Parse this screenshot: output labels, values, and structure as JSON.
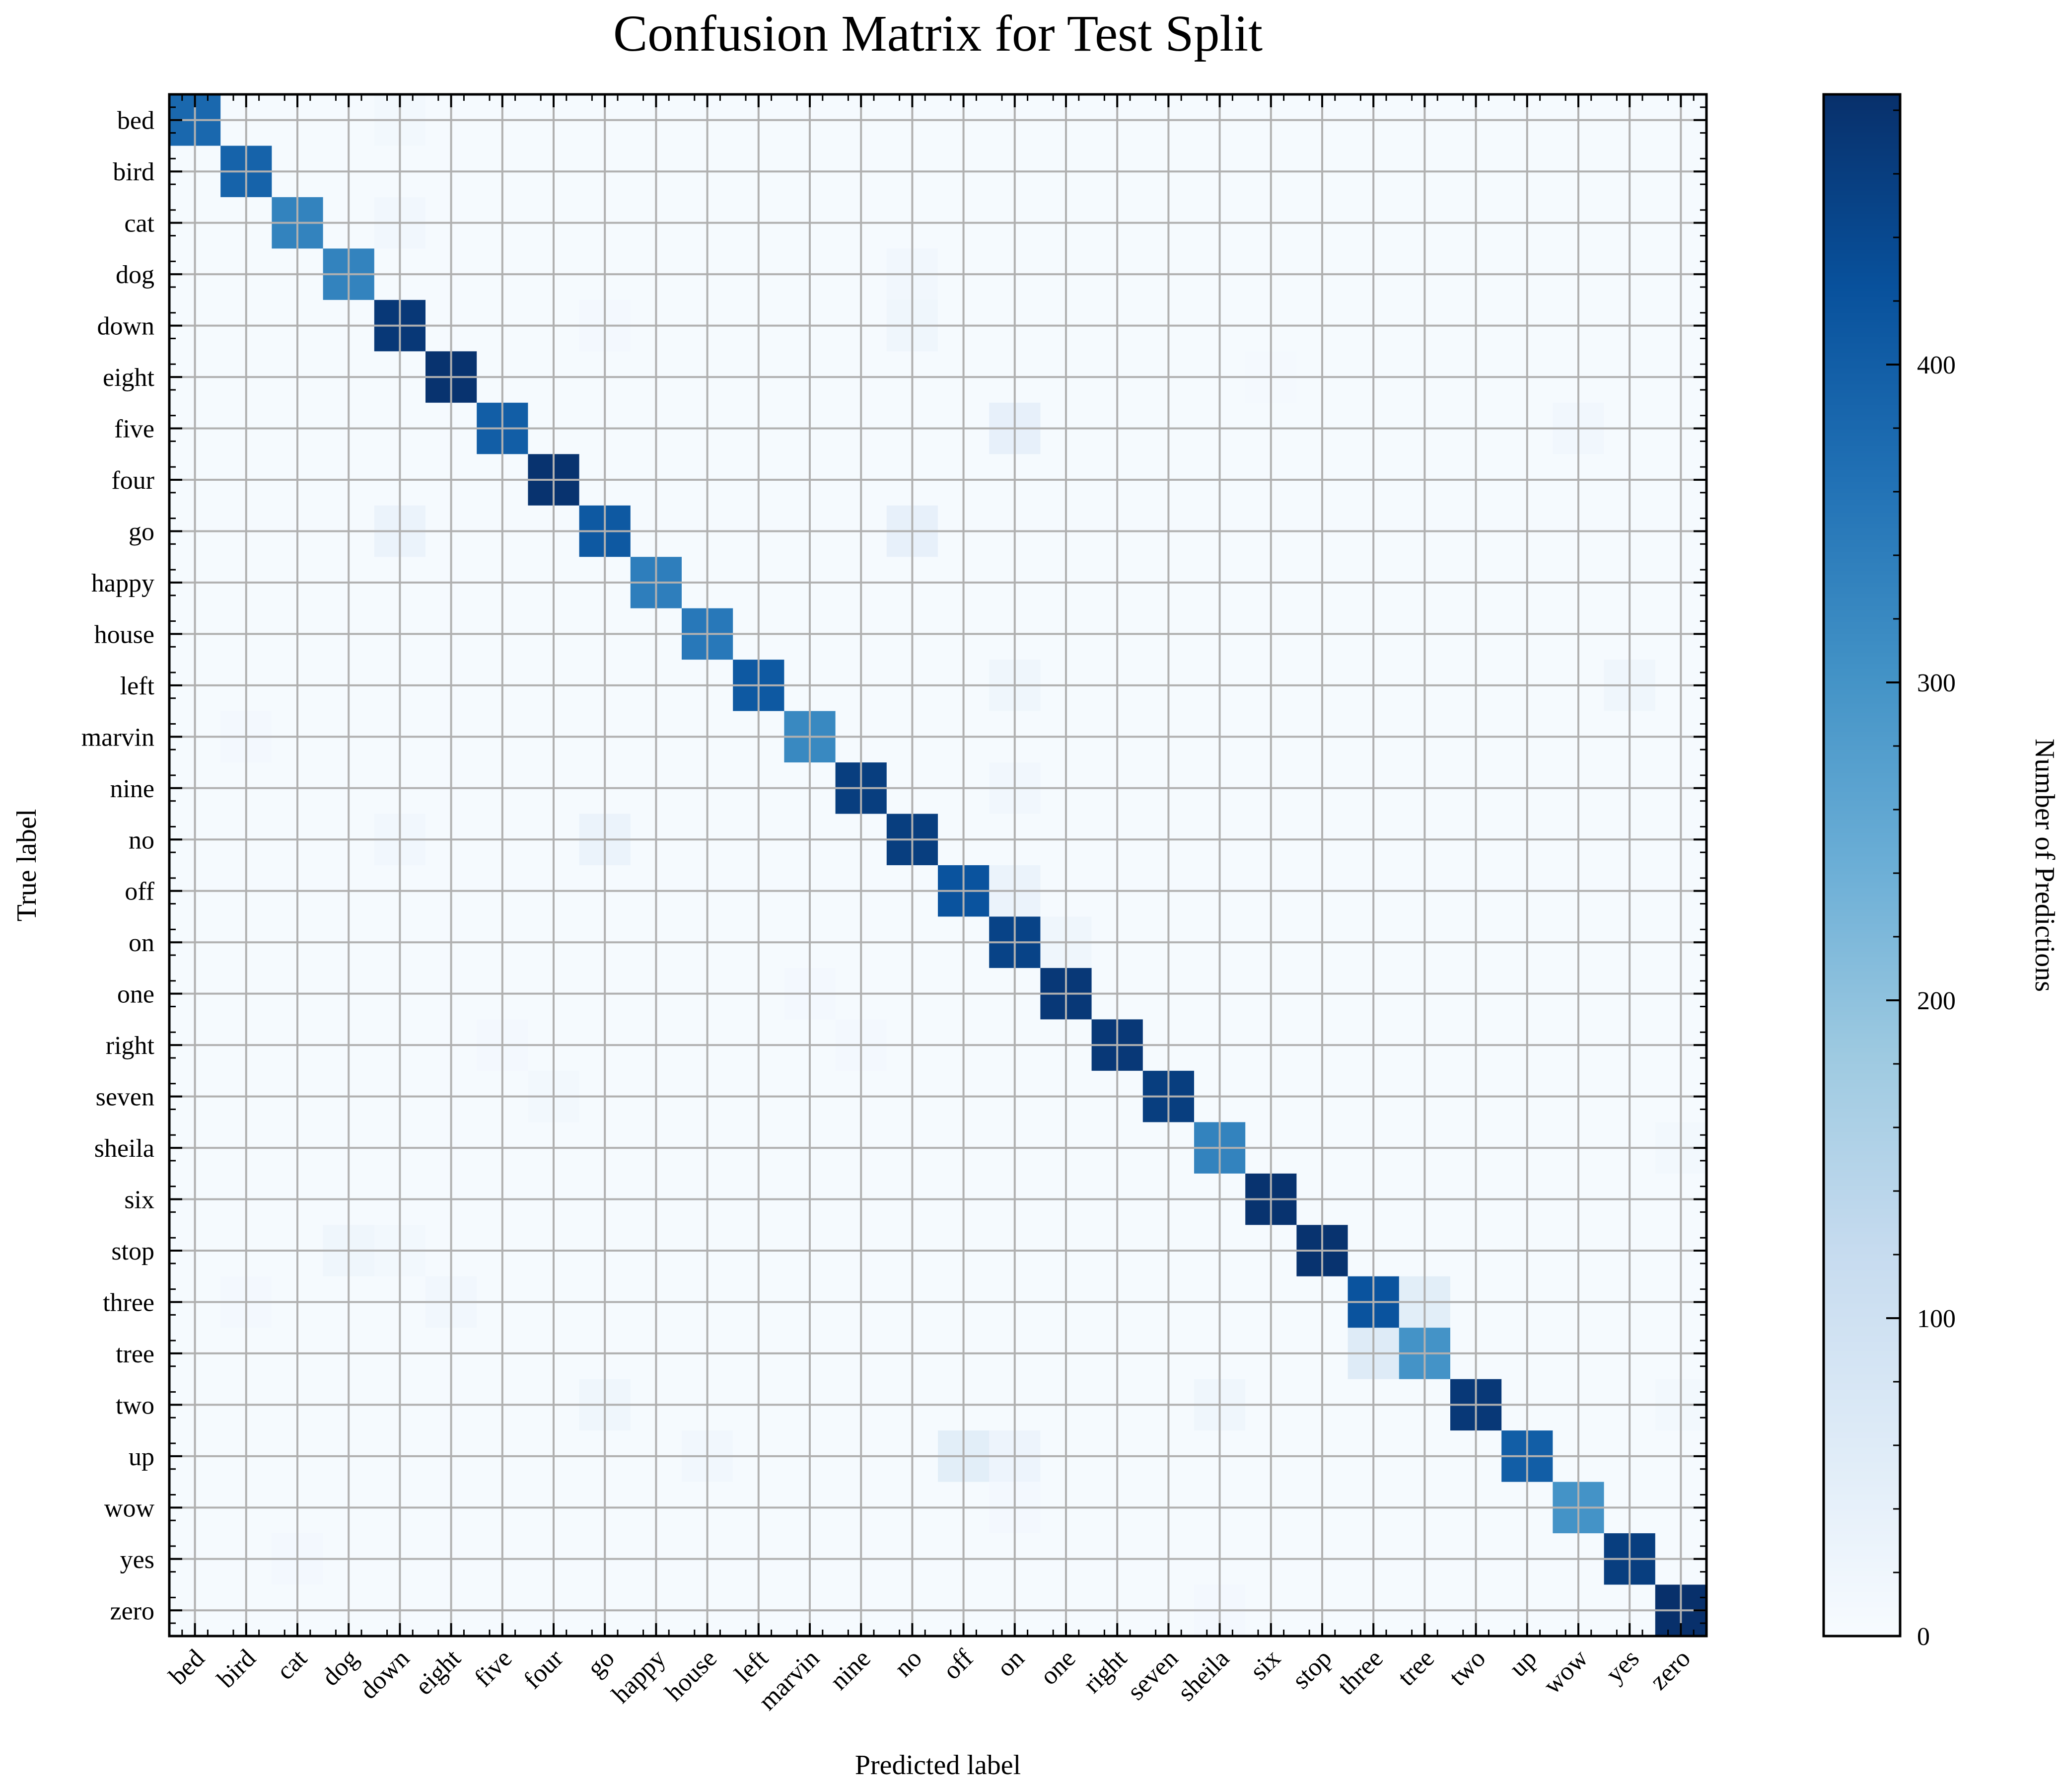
{
  "chart_data": {
    "type": "heatmap",
    "title": "Confusion Matrix for Test Split",
    "xlabel": "Predicted label",
    "ylabel": "True label",
    "colorbar_label": "Number of Predictions",
    "colorbar_ticks": [
      "0",
      "100",
      "200",
      "300",
      "400"
    ],
    "colorbar_tick_values": [
      0,
      100,
      200,
      300,
      400
    ],
    "colorscale": "Blues",
    "vmin": 0,
    "vmax": 485,
    "grid": true,
    "labels": [
      "bed",
      "bird",
      "cat",
      "dog",
      "down",
      "eight",
      "five",
      "four",
      "go",
      "happy",
      "house",
      "left",
      "marvin",
      "nine",
      "no",
      "off",
      "on",
      "one",
      "right",
      "seven",
      "sheila",
      "six",
      "stop",
      "three",
      "tree",
      "two",
      "up",
      "wow",
      "yes",
      "zero"
    ],
    "diagonal": [
      380,
      390,
      330,
      330,
      470,
      480,
      400,
      480,
      410,
      340,
      350,
      410,
      320,
      460,
      460,
      420,
      450,
      470,
      470,
      460,
      330,
      480,
      480,
      420,
      300,
      470,
      400,
      300,
      460,
      490
    ],
    "off_diagonal": [
      {
        "true": "five",
        "pred": "on",
        "value": 40
      },
      {
        "true": "go",
        "pred": "down",
        "value": 30
      },
      {
        "true": "go",
        "pred": "no",
        "value": 40
      },
      {
        "true": "no",
        "pred": "go",
        "value": 30
      },
      {
        "true": "off",
        "pred": "on",
        "value": 30
      },
      {
        "true": "on",
        "pred": "one",
        "value": 20
      },
      {
        "true": "three",
        "pred": "tree",
        "value": 50
      },
      {
        "true": "tree",
        "pred": "three",
        "value": 60
      },
      {
        "true": "up",
        "pred": "off",
        "value": 50
      },
      {
        "true": "up",
        "pred": "on",
        "value": 25
      },
      {
        "true": "stop",
        "pred": "dog",
        "value": 20
      },
      {
        "true": "left",
        "pred": "yes",
        "value": 20
      },
      {
        "true": "left",
        "pred": "on",
        "value": 20
      },
      {
        "true": "two",
        "pred": "go",
        "value": 20
      },
      {
        "true": "two",
        "pred": "sheila",
        "value": 20
      },
      {
        "true": "down",
        "pred": "no",
        "value": 20
      },
      {
        "true": "dog",
        "pred": "no",
        "value": 15
      },
      {
        "true": "cat",
        "pred": "down",
        "value": 15
      },
      {
        "true": "bed",
        "pred": "down",
        "value": 12
      },
      {
        "true": "nine",
        "pred": "on",
        "value": 15
      },
      {
        "true": "no",
        "pred": "down",
        "value": 15
      },
      {
        "true": "three",
        "pred": "eight",
        "value": 15
      },
      {
        "true": "five",
        "pred": "wow",
        "value": 15
      },
      {
        "true": "up",
        "pred": "house",
        "value": 15
      },
      {
        "true": "sheila",
        "pred": "zero",
        "value": 12
      },
      {
        "true": "two",
        "pred": "zero",
        "value": 12
      },
      {
        "true": "seven",
        "pred": "four",
        "value": 12
      },
      {
        "true": "right",
        "pred": "five",
        "value": 10
      },
      {
        "true": "wow",
        "pred": "on",
        "value": 10
      },
      {
        "true": "yes",
        "pred": "cat",
        "value": 10
      },
      {
        "true": "zero",
        "pred": "sheila",
        "value": 10
      },
      {
        "true": "marvin",
        "pred": "bird",
        "value": 10
      },
      {
        "true": "eight",
        "pred": "six",
        "value": 8
      },
      {
        "true": "down",
        "pred": "go",
        "value": 10
      },
      {
        "true": "stop",
        "pred": "down",
        "value": 12
      },
      {
        "true": "three",
        "pred": "bird",
        "value": 10
      },
      {
        "true": "one",
        "pred": "marvin",
        "value": 10
      },
      {
        "true": "right",
        "pred": "nine",
        "value": 10
      }
    ],
    "background_value": 4
  }
}
